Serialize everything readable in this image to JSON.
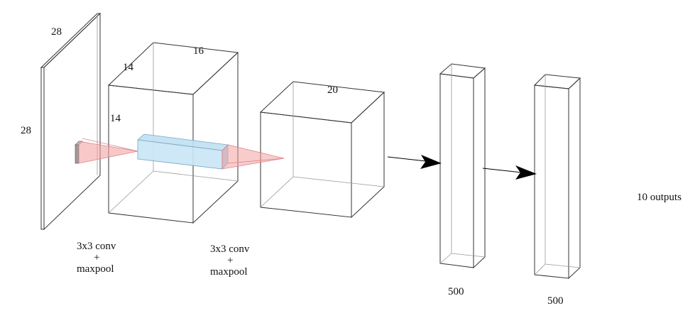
{
  "labels": {
    "input_height": "28",
    "input_width": "28",
    "block1_depth": "16",
    "block1_height": "14",
    "block1_width": "14",
    "block2_depth": "20",
    "conv1_op": [
      "3x3 conv",
      "+",
      "maxpool"
    ],
    "conv2_op": [
      "3x3 conv",
      "+",
      "maxpool"
    ],
    "fc1_units": "500",
    "fc2_units": "500",
    "output": "10 outputs"
  },
  "colors": {
    "face_fill": "#f1f1f1",
    "edge": "#333333",
    "kernel_cone": "#f4a3a3",
    "kernel_block": "#bfe0f2",
    "arrow": "#000000"
  }
}
